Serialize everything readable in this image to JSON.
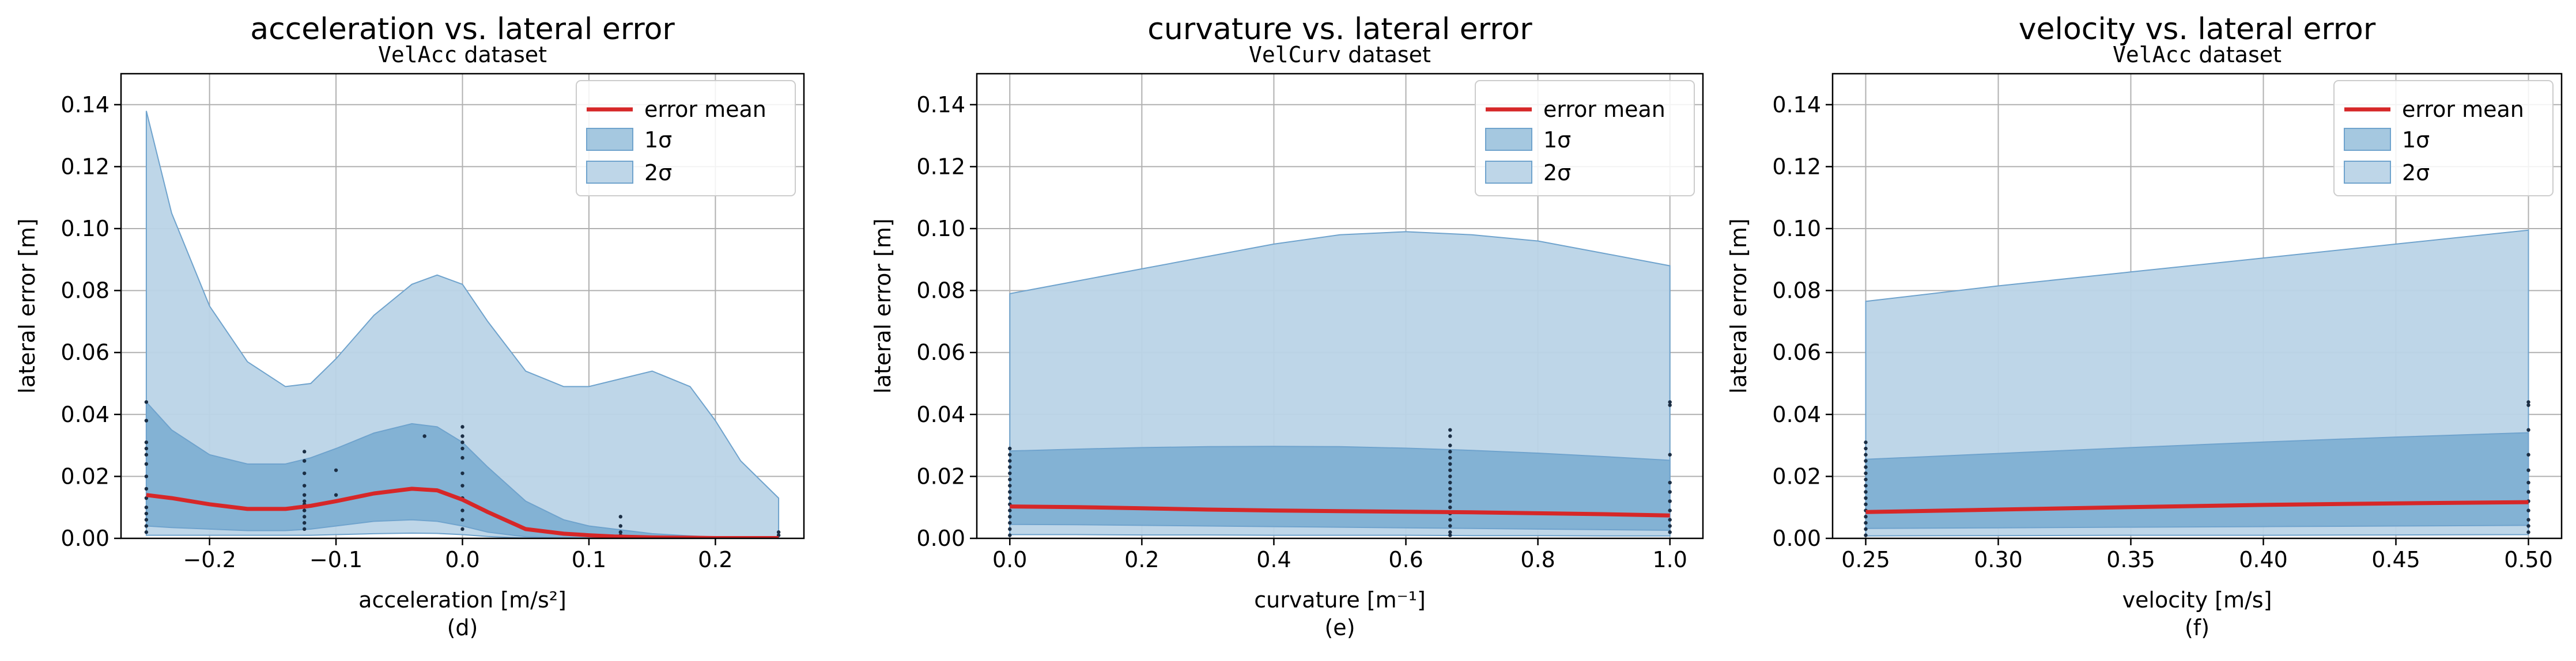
{
  "chart_data": [
    {
      "type": "area",
      "title": "acceleration vs. lateral error",
      "subtitle": "VelAcc",
      "subtitle_suffix": "dataset",
      "xlabel": "acceleration [m/s²]",
      "panel_label": "(d)",
      "ylabel": "lateral error [m]",
      "xlim": [
        -0.27,
        0.27
      ],
      "ylim": [
        0,
        0.15
      ],
      "xticks": [
        -0.2,
        -0.1,
        0.0,
        0.1,
        0.2
      ],
      "xtick_labels": [
        "−0.2",
        "−0.1",
        "0.0",
        "0.1",
        "0.2"
      ],
      "yticks": [
        0,
        0.02,
        0.04,
        0.06,
        0.08,
        0.1,
        0.12,
        0.14
      ],
      "ytick_labels": [
        "0.00",
        "0.02",
        "0.04",
        "0.06",
        "0.08",
        "0.10",
        "0.12",
        "0.14"
      ],
      "grid": true,
      "legend": [
        "error mean",
        "1σ",
        "2σ"
      ],
      "legend_position": "top-right",
      "x": [
        -0.25,
        -0.23,
        -0.2,
        -0.17,
        -0.14,
        -0.12,
        -0.1,
        -0.07,
        -0.04,
        -0.02,
        0.0,
        0.02,
        0.05,
        0.08,
        0.1,
        0.12,
        0.15,
        0.18,
        0.2,
        0.22,
        0.25
      ],
      "mean": [
        0.014,
        0.013,
        0.011,
        0.0095,
        0.0095,
        0.0105,
        0.012,
        0.0145,
        0.016,
        0.0155,
        0.0125,
        0.0085,
        0.003,
        0.0015,
        0.001,
        0.0006,
        0.0003,
        0.0002,
        0.0001,
        0.0001,
        0.0001
      ],
      "sigma1_upper": [
        0.044,
        0.035,
        0.027,
        0.024,
        0.024,
        0.026,
        0.029,
        0.034,
        0.037,
        0.036,
        0.031,
        0.023,
        0.012,
        0.006,
        0.004,
        0.003,
        0.0015,
        0.0008,
        0.0004,
        0.0002,
        0.0001
      ],
      "sigma1_lower": [
        0.004,
        0.0035,
        0.003,
        0.0025,
        0.0025,
        0.003,
        0.004,
        0.0055,
        0.006,
        0.0055,
        0.004,
        0.002,
        0.0005,
        0.0002,
        0.0001,
        0.0001,
        0.0,
        0.0,
        0.0,
        0.0,
        0.0
      ],
      "sigma2_upper": [
        0.138,
        0.105,
        0.075,
        0.057,
        0.049,
        0.05,
        0.058,
        0.072,
        0.082,
        0.085,
        0.082,
        0.07,
        0.054,
        0.049,
        0.049,
        0.051,
        0.054,
        0.049,
        0.038,
        0.025,
        0.013
      ],
      "sigma2_lower": [
        0.001,
        0.001,
        0.001,
        0.001,
        0.001,
        0.001,
        0.0012,
        0.0015,
        0.0017,
        0.0016,
        0.0012,
        0.0006,
        0.0001,
        0.0,
        0.0,
        0.0,
        0.0,
        0.0,
        0.0,
        0.0,
        0.0
      ],
      "samples": [
        [
          -0.25,
          [
            0.044,
            0.038,
            0.031,
            0.029,
            0.027,
            0.024,
            0.02,
            0.016,
            0.013,
            0.01,
            0.008,
            0.006,
            0.004,
            0.002
          ]
        ],
        [
          -0.125,
          [
            0.028,
            0.025,
            0.021,
            0.017,
            0.014,
            0.012,
            0.011,
            0.009,
            0.007,
            0.005,
            0.003
          ]
        ],
        [
          -0.1,
          [
            0.022,
            0.014
          ]
        ],
        [
          -0.03,
          [
            0.033
          ]
        ],
        [
          0.0,
          [
            0.036,
            0.033,
            0.031,
            0.029,
            0.026,
            0.021,
            0.017,
            0.013,
            0.009,
            0.006,
            0.003
          ]
        ],
        [
          0.125,
          [
            0.007,
            0.004,
            0.002,
            0.001
          ]
        ],
        [
          0.25,
          [
            0.002,
            0.001
          ]
        ]
      ]
    },
    {
      "type": "area",
      "title": "curvature vs. lateral error",
      "subtitle": "VelCurv",
      "subtitle_suffix": "dataset",
      "xlabel": "curvature [m⁻¹]",
      "panel_label": "(e)",
      "ylabel": "lateral error [m]",
      "xlim": [
        -0.05,
        1.05
      ],
      "ylim": [
        0,
        0.15
      ],
      "xticks": [
        0.0,
        0.2,
        0.4,
        0.6,
        0.8,
        1.0
      ],
      "xtick_labels": [
        "0.0",
        "0.2",
        "0.4",
        "0.6",
        "0.8",
        "1.0"
      ],
      "yticks": [
        0,
        0.02,
        0.04,
        0.06,
        0.08,
        0.1,
        0.12,
        0.14
      ],
      "ytick_labels": [
        "0.00",
        "0.02",
        "0.04",
        "0.06",
        "0.08",
        "0.10",
        "0.12",
        "0.14"
      ],
      "grid": true,
      "legend": [
        "error mean",
        "1σ",
        "2σ"
      ],
      "legend_position": "top-right",
      "x": [
        0.0,
        0.1,
        0.2,
        0.3,
        0.4,
        0.5,
        0.6,
        0.7,
        0.8,
        0.9,
        1.0
      ],
      "mean": [
        0.0103,
        0.0101,
        0.0097,
        0.0093,
        0.009,
        0.0088,
        0.0086,
        0.0084,
        0.0081,
        0.0078,
        0.0074
      ],
      "sigma1_upper": [
        0.0282,
        0.0288,
        0.0293,
        0.0296,
        0.0297,
        0.0296,
        0.0291,
        0.0284,
        0.0275,
        0.0264,
        0.0252
      ],
      "sigma1_lower": [
        0.0045,
        0.0044,
        0.0042,
        0.004,
        0.0038,
        0.0036,
        0.0034,
        0.0032,
        0.003,
        0.0028,
        0.0026
      ],
      "sigma2_upper": [
        0.079,
        0.083,
        0.087,
        0.091,
        0.095,
        0.098,
        0.099,
        0.098,
        0.096,
        0.092,
        0.088
      ],
      "sigma2_lower": [
        0.0012,
        0.0012,
        0.0011,
        0.0011,
        0.001,
        0.001,
        0.001,
        0.0009,
        0.0009,
        0.0008,
        0.0008
      ],
      "samples": [
        [
          0.0,
          [
            0.029,
            0.027,
            0.025,
            0.023,
            0.021,
            0.019,
            0.017,
            0.015,
            0.013,
            0.011,
            0.009,
            0.007,
            0.005,
            0.003,
            0.001
          ]
        ],
        [
          0.667,
          [
            0.035,
            0.033,
            0.03,
            0.028,
            0.026,
            0.024,
            0.022,
            0.02,
            0.018,
            0.016,
            0.014,
            0.012,
            0.01,
            0.008,
            0.006,
            0.004,
            0.002,
            0.001
          ]
        ],
        [
          1.0,
          [
            0.044,
            0.043,
            0.027,
            0.018,
            0.015,
            0.012,
            0.009,
            0.006,
            0.004,
            0.002
          ]
        ]
      ]
    },
    {
      "type": "area",
      "title": "velocity vs. lateral error",
      "subtitle": "VelAcc",
      "subtitle_suffix": "dataset",
      "xlabel": "velocity [m/s]",
      "panel_label": "(f)",
      "ylabel": "lateral error [m]",
      "xlim": [
        0.2375,
        0.5125
      ],
      "ylim": [
        0,
        0.15
      ],
      "xticks": [
        0.25,
        0.3,
        0.35,
        0.4,
        0.45,
        0.5
      ],
      "xtick_labels": [
        "0.25",
        "0.30",
        "0.35",
        "0.40",
        "0.45",
        "0.50"
      ],
      "yticks": [
        0,
        0.02,
        0.04,
        0.06,
        0.08,
        0.1,
        0.12,
        0.14
      ],
      "ytick_labels": [
        "0.00",
        "0.02",
        "0.04",
        "0.06",
        "0.08",
        "0.10",
        "0.12",
        "0.14"
      ],
      "grid": true,
      "legend": [
        "error mean",
        "1σ",
        "2σ"
      ],
      "legend_position": "top-right",
      "x": [
        0.25,
        0.3,
        0.35,
        0.4,
        0.45,
        0.5
      ],
      "mean": [
        0.0085,
        0.0093,
        0.0101,
        0.0108,
        0.0113,
        0.0117
      ],
      "sigma1_upper": [
        0.0255,
        0.0274,
        0.0293,
        0.0311,
        0.0327,
        0.0341
      ],
      "sigma1_lower": [
        0.0032,
        0.0034,
        0.0036,
        0.0038,
        0.004,
        0.0042
      ],
      "sigma2_upper": [
        0.0765,
        0.0815,
        0.086,
        0.0905,
        0.095,
        0.0995
      ],
      "sigma2_lower": [
        0.0008,
        0.0009,
        0.001,
        0.001,
        0.0011,
        0.0012
      ],
      "samples": [
        [
          0.25,
          [
            0.031,
            0.029,
            0.027,
            0.025,
            0.023,
            0.021,
            0.019,
            0.017,
            0.015,
            0.013,
            0.011,
            0.009,
            0.007,
            0.005,
            0.003,
            0.001
          ]
        ],
        [
          0.5,
          [
            0.044,
            0.043,
            0.035,
            0.027,
            0.022,
            0.018,
            0.015,
            0.012,
            0.009,
            0.006,
            0.004,
            0.002
          ]
        ]
      ]
    }
  ],
  "colors": {
    "mean_line": "#d62728",
    "sigma1_fill": "#7fb0d3",
    "sigma2_fill": "#bad4e7",
    "band_edge": "#6fa3cd",
    "sample_dot": "#1b2e44",
    "grid": "#b0b0b0"
  }
}
